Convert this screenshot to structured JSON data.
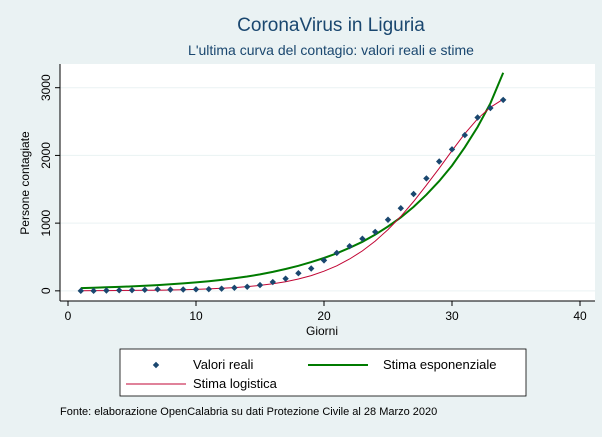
{
  "chart_data": {
    "type": "scatter",
    "title": "CoronaVirus in Liguria",
    "subtitle": "L'ultima curva del contagio: valori reali e stime",
    "xlabel": "Giorni",
    "ylabel": "Persone contagiate",
    "xlim": [
      0,
      40
    ],
    "ylim": [
      -150,
      3350
    ],
    "xticks": [
      0,
      10,
      20,
      30,
      40
    ],
    "yticks": [
      0,
      1000,
      2000,
      3000
    ],
    "grid": "y",
    "legend_position": "bottom",
    "series": [
      {
        "name": "Valori reali",
        "kind": "markers",
        "color": "#1a476f",
        "x": [
          1,
          2,
          3,
          4,
          5,
          6,
          7,
          8,
          9,
          10,
          11,
          12,
          13,
          14,
          15,
          16,
          17,
          18,
          19,
          20,
          21,
          22,
          23,
          24,
          25,
          26,
          27,
          28,
          29,
          30,
          31,
          32,
          33,
          34
        ],
        "y": [
          0,
          0,
          5,
          8,
          10,
          15,
          22,
          18,
          20,
          22,
          25,
          32,
          45,
          60,
          85,
          130,
          180,
          260,
          330,
          450,
          560,
          660,
          770,
          870,
          1050,
          1220,
          1430,
          1660,
          1910,
          2090,
          2300,
          2560,
          2700,
          2820
        ]
      },
      {
        "name": "Stima esponenziale",
        "kind": "line",
        "color": "#007b00",
        "x": [
          1,
          2,
          3,
          4,
          5,
          6,
          7,
          8,
          9,
          10,
          11,
          12,
          13,
          14,
          15,
          16,
          17,
          18,
          19,
          20,
          21,
          22,
          23,
          24,
          25,
          26,
          27,
          28,
          29,
          30,
          31,
          32,
          33,
          34
        ],
        "y": [
          40,
          45,
          52,
          58,
          65,
          75,
          85,
          97,
          110,
          125,
          142,
          162,
          185,
          212,
          243,
          280,
          322,
          370,
          425,
          485,
          555,
          635,
          725,
          830,
          950,
          1085,
          1240,
          1420,
          1620,
          1850,
          2120,
          2420,
          2770,
          3220
        ]
      },
      {
        "name": "Stima logistica",
        "kind": "line",
        "color": "#c10534",
        "x": [
          1,
          2,
          3,
          4,
          5,
          6,
          7,
          8,
          9,
          10,
          11,
          12,
          13,
          14,
          15,
          16,
          17,
          18,
          19,
          20,
          21,
          22,
          23,
          24,
          25,
          26,
          27,
          28,
          29,
          30,
          31,
          32,
          33,
          34
        ],
        "y": [
          2,
          3,
          4,
          5,
          6,
          8,
          10,
          13,
          17,
          22,
          28,
          37,
          48,
          62,
          80,
          104,
          135,
          175,
          225,
          290,
          370,
          470,
          590,
          735,
          905,
          1100,
          1320,
          1560,
          1810,
          2070,
          2320,
          2540,
          2710,
          2830
        ]
      }
    ],
    "note": "Fonte: elaborazione OpenCalabria su dati Protezione Civile al 28 Marzo 2020"
  }
}
